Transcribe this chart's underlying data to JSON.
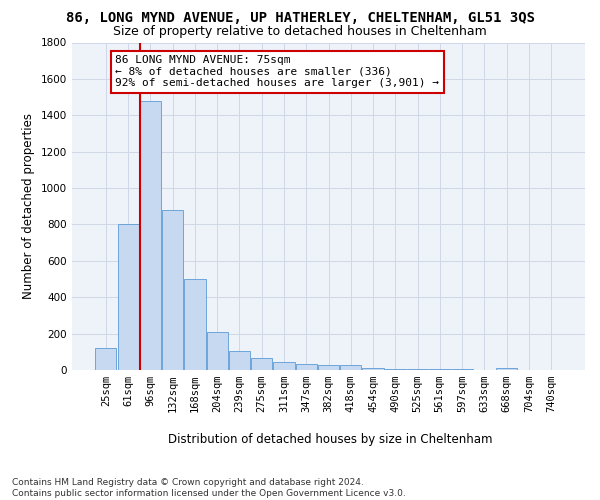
{
  "title": "86, LONG MYND AVENUE, UP HATHERLEY, CHELTENHAM, GL51 3QS",
  "subtitle": "Size of property relative to detached houses in Cheltenham",
  "xlabel": "Distribution of detached houses by size in Cheltenham",
  "ylabel": "Number of detached properties",
  "categories": [
    "25sqm",
    "61sqm",
    "96sqm",
    "132sqm",
    "168sqm",
    "204sqm",
    "239sqm",
    "275sqm",
    "311sqm",
    "347sqm",
    "382sqm",
    "418sqm",
    "454sqm",
    "490sqm",
    "525sqm",
    "561sqm",
    "597sqm",
    "633sqm",
    "668sqm",
    "704sqm",
    "740sqm"
  ],
  "values": [
    120,
    800,
    1480,
    880,
    500,
    210,
    105,
    65,
    45,
    35,
    30,
    25,
    10,
    8,
    5,
    4,
    3,
    2,
    10,
    2,
    2
  ],
  "bar_color": "#c6d9f0",
  "bar_edge_color": "#5b9bd5",
  "grid_color": "#d0d8e8",
  "background_color": "#eef3fa",
  "ylim": [
    0,
    1800
  ],
  "yticks": [
    0,
    200,
    400,
    600,
    800,
    1000,
    1200,
    1400,
    1600,
    1800
  ],
  "red_line_x": 1.55,
  "annotation_text": "86 LONG MYND AVENUE: 75sqm\n← 8% of detached houses are smaller (336)\n92% of semi-detached houses are larger (3,901) →",
  "annotation_box_color": "#ffffff",
  "annotation_border_color": "#cc0000",
  "footer_text": "Contains HM Land Registry data © Crown copyright and database right 2024.\nContains public sector information licensed under the Open Government Licence v3.0.",
  "title_fontsize": 10,
  "subtitle_fontsize": 9,
  "axis_label_fontsize": 8.5,
  "tick_fontsize": 7.5,
  "annotation_fontsize": 8,
  "footer_fontsize": 6.5
}
